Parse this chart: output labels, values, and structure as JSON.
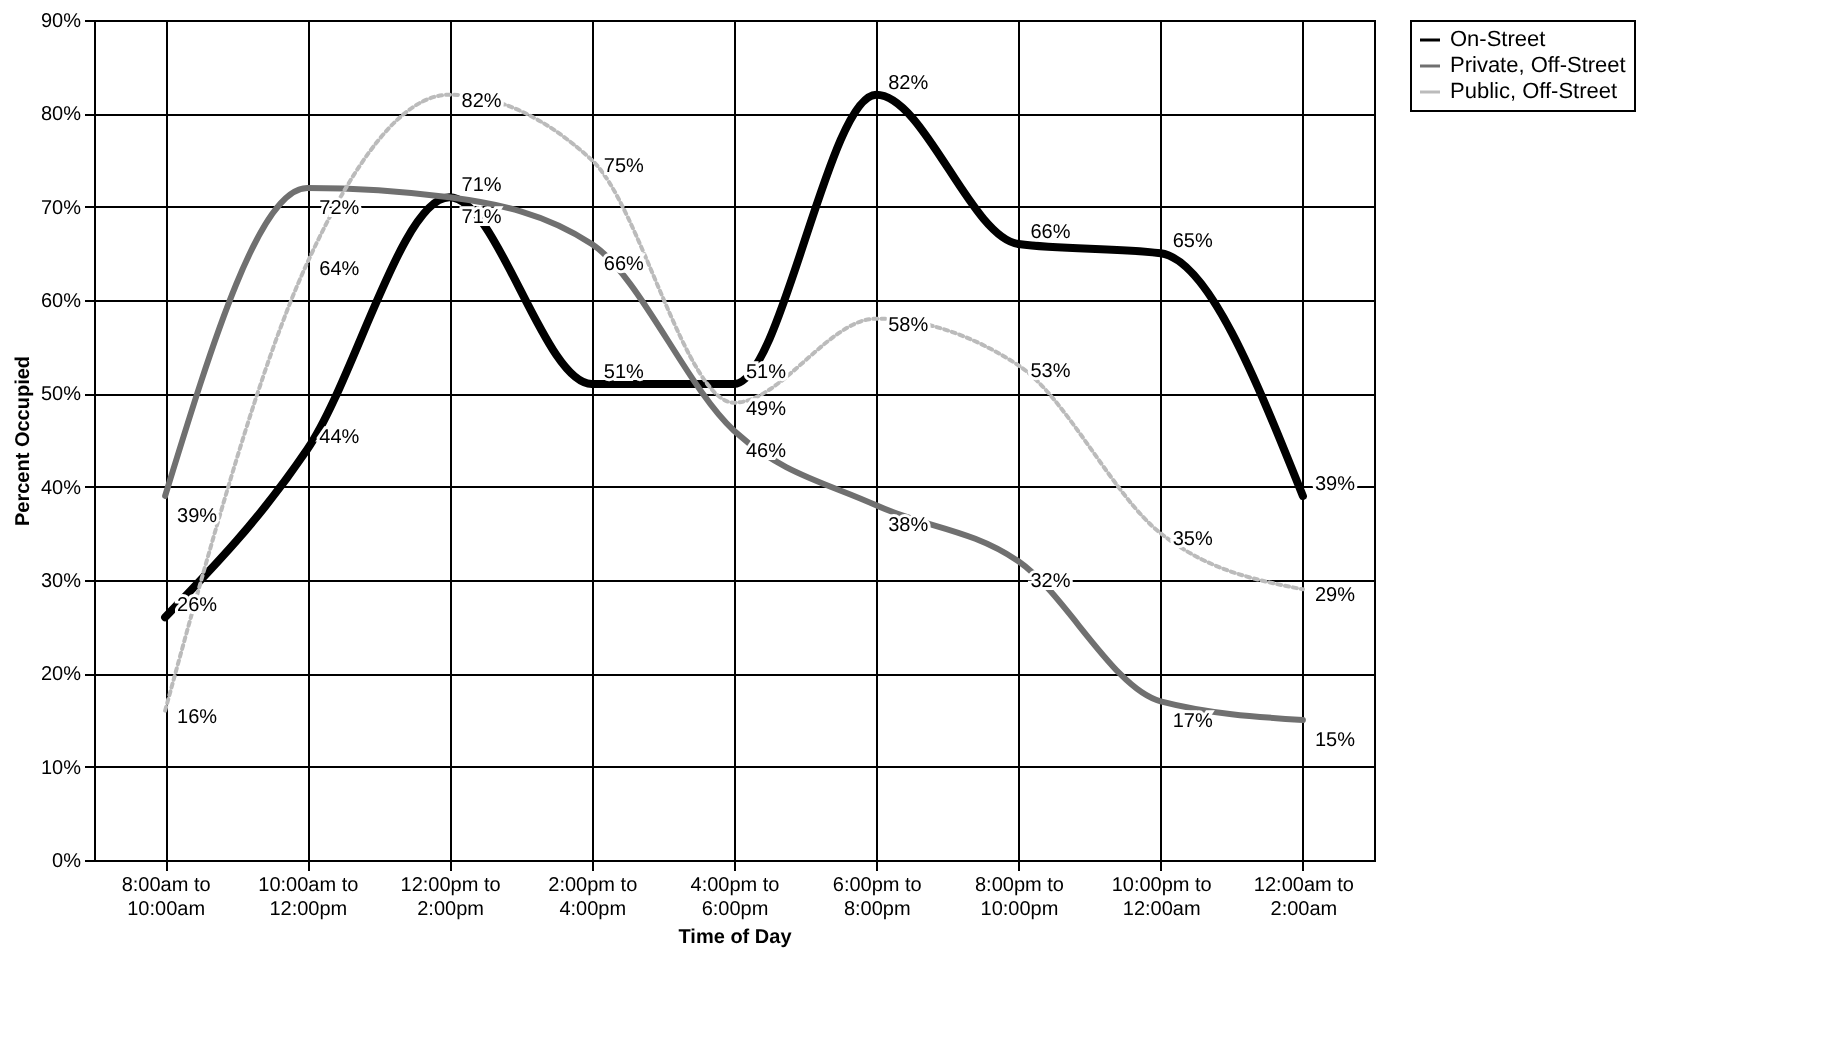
{
  "chart_data": {
    "type": "line",
    "xlabel": "Time of Day",
    "ylabel": "Percent Occupied",
    "categories": [
      "8:00am to 10:00am",
      "10:00am to 12:00pm",
      "12:00pm to 2:00pm",
      "2:00pm to 4:00pm",
      "4:00pm to 6:00pm",
      "6:00pm to 8:00pm",
      "8:00pm to 10:00pm",
      "10:00pm to 12:00am",
      "12:00am to 2:00am"
    ],
    "series": [
      {
        "name": "On-Street",
        "color": "#000000",
        "line_style": "solid",
        "values": [
          26,
          44,
          71,
          51,
          51,
          82,
          66,
          65,
          39
        ],
        "value_labels": [
          "26%",
          "44%",
          "71%",
          "51%",
          "51%",
          "82%",
          "66%",
          "65%",
          "39%"
        ]
      },
      {
        "name": "Private, Off-Street",
        "color": "#707070",
        "line_style": "solid",
        "values": [
          39,
          72,
          71,
          66,
          46,
          38,
          32,
          17,
          15
        ],
        "value_labels": [
          "39%",
          "72%",
          "71%",
          "66%",
          "46%",
          "38%",
          "32%",
          "17%",
          "15%"
        ]
      },
      {
        "name": "Public, Off-Street",
        "color": "#bbbbbb",
        "line_style": "dotted",
        "values": [
          16,
          64,
          82,
          75,
          49,
          58,
          53,
          35,
          29
        ],
        "value_labels": [
          "16%",
          "64%",
          "82%",
          "75%",
          "49%",
          "58%",
          "53%",
          "35%",
          "29%"
        ]
      }
    ],
    "ylim": [
      0,
      90
    ],
    "yticks": [
      {
        "value": 0,
        "label": "0%"
      },
      {
        "value": 10,
        "label": "10%"
      },
      {
        "value": 20,
        "label": "20%"
      },
      {
        "value": 30,
        "label": "30%"
      },
      {
        "value": 40,
        "label": "40%"
      },
      {
        "value": 50,
        "label": "50%"
      },
      {
        "value": 60,
        "label": "60%"
      },
      {
        "value": 70,
        "label": "70%"
      },
      {
        "value": 80,
        "label": "80%"
      },
      {
        "value": 90,
        "label": "90%"
      }
    ],
    "grid": true,
    "legend": "right",
    "marker": "none"
  }
}
